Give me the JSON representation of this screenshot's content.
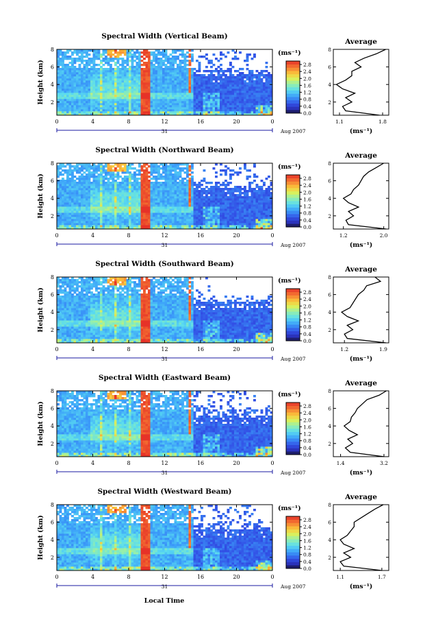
{
  "figure": {
    "x_axis_label": "Local Time",
    "colorbar_unit": "(ms⁻¹)",
    "date_label": "Aug 2007",
    "day_label": "31",
    "average_title": "Average",
    "average_unit": "(ms⁻¹)"
  },
  "chart_data": [
    {
      "type": "heatmap",
      "title": "Spectral Width (Vertical Beam)",
      "ylabel": "Height (km)",
      "xlabel": "Local Time",
      "x_ticks": [
        "0",
        "4",
        "8",
        "12",
        "16",
        "20",
        "0"
      ],
      "y_ticks": [
        "2",
        "4",
        "6",
        "8"
      ],
      "ylim": [
        0.5,
        8.0
      ],
      "colorbar": {
        "unit": "(ms⁻¹)",
        "ticks": [
          "2.8",
          "2.4",
          "2.0",
          "1.6",
          "1.2",
          "0.8",
          "0.4",
          "0.0"
        ],
        "range": [
          0.0,
          3.0
        ]
      },
      "average_profile": {
        "title": "Average",
        "xlabel": "(ms⁻¹)",
        "x_ticks": [
          "1.1",
          "1.8"
        ],
        "xlim": [
          1.0,
          1.9
        ],
        "heights": [
          0.5,
          1.0,
          1.5,
          2.0,
          2.5,
          3.0,
          3.5,
          4.0,
          4.5,
          5.0,
          5.5,
          6.0,
          6.5,
          7.0,
          7.5,
          8.0
        ],
        "values": [
          1.75,
          1.2,
          1.15,
          1.3,
          1.2,
          1.35,
          1.15,
          1.05,
          1.2,
          1.3,
          1.3,
          1.45,
          1.35,
          1.5,
          1.7,
          1.85
        ]
      }
    },
    {
      "type": "heatmap",
      "title": "Spectral Width (Northward Beam)",
      "ylabel": "Height (km)",
      "xlabel": "Local Time",
      "x_ticks": [
        "0",
        "4",
        "8",
        "12",
        "16",
        "20",
        "0"
      ],
      "y_ticks": [
        "2",
        "4",
        "6",
        "8"
      ],
      "ylim": [
        0.5,
        8.0
      ],
      "colorbar": {
        "unit": "(ms⁻¹)",
        "ticks": [
          "2.8",
          "2.4",
          "2.0",
          "1.6",
          "1.2",
          "0.8",
          "0.4",
          "0.0"
        ],
        "range": [
          0.0,
          3.0
        ]
      },
      "average_profile": {
        "title": "Average",
        "xlabel": "(ms⁻¹)",
        "x_ticks": [
          "1.2",
          "2.0"
        ],
        "xlim": [
          1.0,
          2.1
        ],
        "heights": [
          0.5,
          1.0,
          1.5,
          2.0,
          2.5,
          3.0,
          3.5,
          4.0,
          4.5,
          5.0,
          5.5,
          6.0,
          6.5,
          7.0,
          7.5,
          8.0
        ],
        "values": [
          2.05,
          1.3,
          1.25,
          1.4,
          1.3,
          1.5,
          1.3,
          1.2,
          1.35,
          1.4,
          1.5,
          1.55,
          1.6,
          1.7,
          1.85,
          2.0
        ]
      }
    },
    {
      "type": "heatmap",
      "title": "Spectral Width (Southward Beam)",
      "ylabel": "Height (km)",
      "xlabel": "Local Time",
      "x_ticks": [
        "0",
        "4",
        "8",
        "12",
        "16",
        "20",
        "0"
      ],
      "y_ticks": [
        "2",
        "4",
        "6",
        "8"
      ],
      "ylim": [
        0.5,
        8.0
      ],
      "colorbar": {
        "unit": "(ms⁻¹)",
        "ticks": [
          "2.8",
          "2.4",
          "2.0",
          "1.6",
          "1.2",
          "0.8",
          "0.4",
          "0.0"
        ],
        "range": [
          0.0,
          3.0
        ]
      },
      "average_profile": {
        "title": "Average",
        "xlabel": "(ms⁻¹)",
        "x_ticks": [
          "1.2",
          "1.9"
        ],
        "xlim": [
          1.0,
          2.0
        ],
        "heights": [
          0.5,
          1.0,
          1.5,
          2.0,
          2.5,
          3.0,
          3.5,
          4.0,
          4.5,
          5.0,
          5.5,
          6.0,
          6.5,
          7.0,
          7.5,
          8.0
        ],
        "values": [
          1.95,
          1.25,
          1.2,
          1.35,
          1.25,
          1.45,
          1.25,
          1.15,
          1.3,
          1.35,
          1.4,
          1.45,
          1.55,
          1.6,
          1.85,
          1.75
        ]
      }
    },
    {
      "type": "heatmap",
      "title": "Spectral Width (Eastward Beam)",
      "ylabel": "Height (km)",
      "xlabel": "Local Time",
      "x_ticks": [
        "0",
        "4",
        "8",
        "12",
        "16",
        "20",
        "0"
      ],
      "y_ticks": [
        "2",
        "4",
        "6",
        "8"
      ],
      "ylim": [
        0.5,
        8.0
      ],
      "colorbar": {
        "unit": "(ms⁻¹)",
        "ticks": [
          "2.8",
          "2.4",
          "2.0",
          "1.6",
          "1.2",
          "0.8",
          "0.4",
          "0.0"
        ],
        "range": [
          0.0,
          3.0
        ]
      },
      "average_profile": {
        "title": "Average",
        "xlabel": "(ms⁻¹)",
        "x_ticks": [
          "1.4",
          "3.2"
        ],
        "xlim": [
          1.1,
          3.4
        ],
        "heights": [
          0.5,
          1.0,
          1.5,
          2.0,
          2.5,
          3.0,
          3.5,
          4.0,
          4.5,
          5.0,
          5.5,
          6.0,
          6.5,
          7.0,
          7.5,
          8.0
        ],
        "values": [
          3.2,
          1.8,
          1.6,
          1.9,
          1.7,
          2.1,
          1.75,
          1.55,
          1.8,
          1.85,
          2.0,
          2.1,
          2.3,
          2.5,
          3.0,
          3.3
        ]
      }
    },
    {
      "type": "heatmap",
      "title": "Spectral Width (Westward Beam)",
      "ylabel": "Height (km)",
      "xlabel": "Local Time",
      "x_ticks": [
        "0",
        "4",
        "8",
        "12",
        "16",
        "20",
        "0"
      ],
      "y_ticks": [
        "2",
        "4",
        "6",
        "8"
      ],
      "ylim": [
        0.5,
        8.0
      ],
      "colorbar": {
        "unit": "(ms⁻¹)",
        "ticks": [
          "2.8",
          "2.4",
          "2.0",
          "1.6",
          "1.2",
          "0.8",
          "0.4",
          "0.0"
        ],
        "range": [
          0.0,
          3.0
        ]
      },
      "average_profile": {
        "title": "Average",
        "xlabel": "(ms⁻¹)",
        "x_ticks": [
          "1.1",
          "1.7"
        ],
        "xlim": [
          1.0,
          1.8
        ],
        "heights": [
          0.5,
          1.0,
          1.5,
          2.0,
          2.5,
          3.0,
          3.5,
          4.0,
          4.5,
          5.0,
          5.5,
          6.0,
          6.5,
          7.0,
          7.5,
          8.0
        ],
        "values": [
          1.7,
          1.15,
          1.1,
          1.25,
          1.15,
          1.3,
          1.15,
          1.1,
          1.2,
          1.25,
          1.3,
          1.3,
          1.4,
          1.5,
          1.6,
          1.72
        ]
      }
    }
  ]
}
